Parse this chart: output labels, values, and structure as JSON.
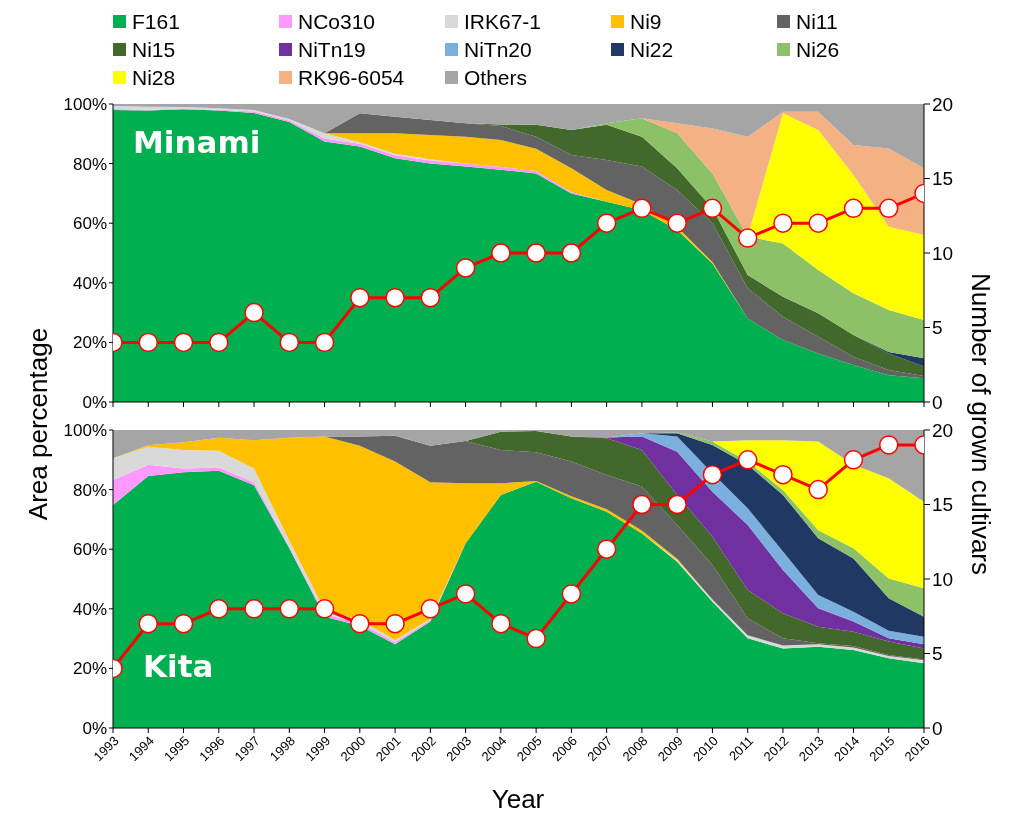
{
  "chart_data": [
    {
      "type": "area",
      "stacked": true,
      "legend": "top",
      "tick_labels": "y",
      "ylabel": "Area percentage",
      "y2label": "Number of grown cultivars",
      "annotations": [
        "Minami"
      ],
      "categories": [
        "1993",
        "1994",
        "1995",
        "1996",
        "1997",
        "1998",
        "1999",
        "2000",
        "2001",
        "2002",
        "2003",
        "2004",
        "2005",
        "2006",
        "2007",
        "2008",
        "2009",
        "2010",
        "2011",
        "2012",
        "2013",
        "2014",
        "2015",
        "2016"
      ],
      "ylim": [
        0,
        100
      ],
      "yticks": [
        {
          "value": 0,
          "label": "0%"
        },
        {
          "value": 20,
          "label": "20%"
        },
        {
          "value": 40,
          "label": "40%"
        },
        {
          "value": 60,
          "label": "60%"
        },
        {
          "value": 80,
          "label": "80%"
        },
        {
          "value": 100,
          "label": "100%"
        }
      ],
      "y2lim": [
        0,
        20
      ],
      "y2ticks": [
        0,
        5,
        10,
        15,
        20
      ],
      "series": [
        {
          "name": "F161",
          "color": "#00b050",
          "values": [
            98,
            97.8,
            98.2,
            97.8,
            97,
            94,
            87.4,
            85.7,
            81.8,
            80,
            79,
            77.9,
            76.7,
            70,
            67.2,
            64.4,
            57.7,
            46.5,
            28,
            20.8,
            16.3,
            12.4,
            9,
            8
          ]
        },
        {
          "name": "NCo310",
          "color": "#ff99ff",
          "values": [
            0.3,
            0.3,
            0.3,
            0.3,
            0.5,
            0.5,
            1,
            1,
            1,
            1,
            1,
            1,
            0.8,
            0.5,
            0,
            null,
            null,
            null,
            null,
            null,
            null,
            null,
            null,
            null
          ]
        },
        {
          "name": "IRK67-1",
          "color": "#d9d9d9",
          "values": [
            1,
            1,
            0.5,
            0.5,
            0.5,
            0.5,
            1.8,
            0.5,
            0.5,
            0.5,
            0,
            null,
            null,
            null,
            null,
            null,
            null,
            null,
            null,
            null,
            null,
            null,
            null,
            null
          ]
        },
        {
          "name": "Ni9",
          "color": "#ffc000",
          "values": [
            null,
            null,
            null,
            null,
            null,
            null,
            0,
            3,
            6.9,
            8.1,
            9,
            9,
            7.5,
            7.9,
            3.9,
            2,
            1,
            0.5,
            0,
            null,
            null,
            null,
            null,
            null
          ]
        },
        {
          "name": "Ni11",
          "color": "#636363",
          "values": [
            null,
            null,
            null,
            null,
            null,
            null,
            0,
            6.7,
            5.5,
            5,
            4.5,
            4.7,
            4,
            4.5,
            10.1,
            12.6,
            12.4,
            13,
            10.2,
            7.8,
            5.6,
            2.8,
            1.7,
            0.7
          ]
        },
        {
          "name": "Ni15",
          "color": "#43682b",
          "values": [
            null,
            null,
            null,
            null,
            null,
            null,
            null,
            null,
            null,
            null,
            0,
            0.5,
            4,
            8.4,
            11.8,
            10,
            7.3,
            5,
            4.4,
            6.7,
            7.9,
            7.3,
            5.6,
            3.2
          ]
        },
        {
          "name": "Ni22",
          "color": "#203864",
          "values": [
            null,
            null,
            null,
            null,
            null,
            null,
            null,
            null,
            null,
            null,
            null,
            null,
            null,
            null,
            null,
            null,
            null,
            null,
            null,
            null,
            null,
            0,
            0.5,
            2.8
          ]
        },
        {
          "name": "Ni26",
          "color": "#8cc168",
          "values": [
            null,
            null,
            null,
            null,
            null,
            null,
            null,
            null,
            null,
            null,
            null,
            null,
            null,
            0,
            0.5,
            6.2,
            11.8,
            11.7,
            12.9,
            17.9,
            14.5,
            14,
            14.1,
            12.8
          ]
        },
        {
          "name": "Ni28",
          "color": "#ffff00",
          "values": [
            null,
            null,
            null,
            null,
            null,
            null,
            null,
            null,
            null,
            null,
            null,
            null,
            null,
            null,
            null,
            null,
            null,
            null,
            0,
            43.7,
            47,
            39.7,
            27.9,
            28.5
          ]
        },
        {
          "name": "RK96-6054",
          "color": "#f4b183",
          "values": [
            null,
            null,
            null,
            null,
            null,
            null,
            null,
            null,
            null,
            null,
            null,
            null,
            null,
            null,
            null,
            0,
            3.3,
            15.1,
            33.5,
            0.5,
            6.1,
            10,
            26.3,
            22.4
          ]
        },
        {
          "name": "Others",
          "color": "#a5a5a5",
          "values": [
            0.7,
            0.9,
            1,
            1.4,
            2,
            5,
            9.8,
            3.1,
            4.3,
            5.4,
            6.5,
            6.9,
            7,
            8.7,
            6.5,
            4.8,
            6.5,
            8.2,
            11,
            2.6,
            2.6,
            13.8,
            14.9,
            21.6
          ]
        },
        {
          "type": "line",
          "axis": "y2",
          "marker": "circle",
          "color": "#ff0000",
          "values": [
            4,
            4,
            4,
            4,
            6,
            4,
            4,
            7,
            7,
            7,
            9,
            10,
            10,
            10,
            12,
            13,
            12,
            13,
            11,
            12,
            12,
            13,
            13,
            14
          ]
        }
      ]
    },
    {
      "type": "area",
      "stacked": true,
      "legend": "top",
      "xlabel": "Year",
      "annotations": [
        "Kita"
      ],
      "categories": [
        "1993",
        "1994",
        "1995",
        "1996",
        "1997",
        "1998",
        "1999",
        "2000",
        "2001",
        "2002",
        "2003",
        "2004",
        "2005",
        "2006",
        "2007",
        "2008",
        "2009",
        "2010",
        "2011",
        "2012",
        "2013",
        "2014",
        "2015",
        "2016"
      ],
      "ylim": [
        0,
        100
      ],
      "yticks": [
        {
          "value": 0,
          "label": "0%"
        },
        {
          "value": 20,
          "label": "20%"
        },
        {
          "value": 40,
          "label": "40%"
        },
        {
          "value": 60,
          "label": "60%"
        },
        {
          "value": 80,
          "label": "80%"
        },
        {
          "value": 100,
          "label": "100%"
        }
      ],
      "y2lim": [
        0,
        20
      ],
      "y2ticks": [
        0,
        5,
        10,
        15,
        20
      ],
      "series": [
        {
          "name": "F161",
          "color": "#00b050",
          "values": [
            74.8,
            84.6,
            85.8,
            86.3,
            81.5,
            60.3,
            37.3,
            34.3,
            28.1,
            35.7,
            62,
            78.2,
            82.6,
            77.1,
            72.6,
            65.3,
            55.8,
            42.4,
            30.1,
            26.7,
            27.3,
            26.2,
            23.4,
            21.7
          ]
        },
        {
          "name": "NCo310",
          "color": "#ff99ff",
          "values": [
            8.4,
            3.7,
            1.3,
            1.1,
            1,
            0.5,
            0.8,
            1,
            0.7,
            0.5,
            0,
            null,
            null,
            null,
            null,
            null,
            null,
            null,
            null,
            null,
            null,
            null,
            null,
            null
          ]
        },
        {
          "name": "IRK67-1",
          "color": "#d9d9d9",
          "values": [
            7.3,
            6.1,
            6.2,
            5.6,
            4.6,
            2,
            1.5,
            1,
            0.7,
            0.5,
            0,
            null,
            null,
            null,
            null,
            0,
            0.5,
            0.7,
            1,
            1,
            0.8,
            0.8,
            0.8,
            1
          ]
        },
        {
          "name": "Ni9",
          "color": "#ffc000",
          "values": [
            0,
            0.5,
            2.6,
            4.4,
            9.5,
            34.6,
            58.2,
            58.4,
            59.9,
            45.8,
            20.1,
            3.9,
            0.3,
            0.7,
            0.8,
            1,
            0.5,
            0,
            null,
            null,
            null,
            null,
            null,
            null
          ]
        },
        {
          "name": "Ni11",
          "color": "#636363",
          "values": [
            null,
            null,
            null,
            null,
            null,
            null,
            0,
            3.1,
            8.7,
            12.2,
            14.2,
            11.2,
            9.6,
            11.6,
            11.5,
            14.7,
            11.3,
            11.6,
            5.7,
            2.4,
            0.3,
            0.5,
            0.3,
            0.3
          ]
        },
        {
          "name": "Ni15",
          "color": "#43682b",
          "values": [
            null,
            null,
            null,
            null,
            null,
            null,
            null,
            null,
            null,
            null,
            0,
            6.1,
            7.2,
            8.4,
            12.3,
            12.3,
            10.1,
            9.5,
            9.5,
            8.4,
            5.6,
            4.8,
            4.5,
            3.7
          ]
        },
        {
          "name": "NiTn19",
          "color": "#7030a0",
          "values": [
            null,
            null,
            null,
            null,
            null,
            null,
            null,
            null,
            null,
            null,
            null,
            null,
            null,
            0,
            0.3,
            4.5,
            14.5,
            15.1,
            21.8,
            14.5,
            6.2,
            3.4,
            1.1,
            1.4
          ]
        },
        {
          "name": "NiTn20",
          "color": "#7bafde",
          "values": [
            null,
            null,
            null,
            null,
            null,
            null,
            null,
            null,
            null,
            null,
            null,
            null,
            null,
            null,
            0,
            1.1,
            5.1,
            6.2,
            5.6,
            6.2,
            4.4,
            3.3,
            2.5,
            2.5
          ]
        },
        {
          "name": "Ni22",
          "color": "#203864",
          "values": [
            null,
            null,
            null,
            null,
            null,
            null,
            null,
            null,
            null,
            null,
            null,
            null,
            null,
            null,
            null,
            0,
            1.1,
            9.5,
            14.6,
            19,
            19.1,
            17.9,
            10.9,
            6.7
          ]
        },
        {
          "name": "Ni26",
          "color": "#8cc168",
          "values": [
            null,
            null,
            null,
            null,
            null,
            null,
            null,
            null,
            null,
            null,
            null,
            null,
            null,
            null,
            null,
            0,
            0.3,
            1.1,
            1.1,
            1.7,
            2.7,
            3.4,
            6.7,
            9.6
          ]
        },
        {
          "name": "Ni28",
          "color": "#ffff00",
          "values": [
            null,
            null,
            null,
            null,
            null,
            null,
            null,
            null,
            null,
            null,
            null,
            null,
            null,
            null,
            null,
            null,
            null,
            0,
            7.2,
            16.7,
            29.7,
            28,
            33.6,
            29
          ]
        },
        {
          "name": "Others",
          "color": "#a5a5a5",
          "values": [
            9.5,
            5.1,
            4.1,
            2.6,
            3.4,
            2.6,
            2.2,
            2.2,
            1.9,
            5.3,
            3.7,
            0.6,
            0.3,
            2.2,
            2.5,
            1.1,
            0.8,
            3.9,
            3.4,
            3.4,
            3.9,
            11.7,
            16.2,
            24.1
          ]
        },
        {
          "type": "line",
          "axis": "y2",
          "marker": "circle",
          "color": "#ff0000",
          "values": [
            4,
            7,
            7,
            8,
            8,
            8,
            8,
            7,
            7,
            8,
            9,
            7,
            6,
            9,
            12,
            15,
            15,
            17,
            18,
            17,
            16,
            18,
            19,
            19
          ]
        }
      ]
    }
  ]
}
